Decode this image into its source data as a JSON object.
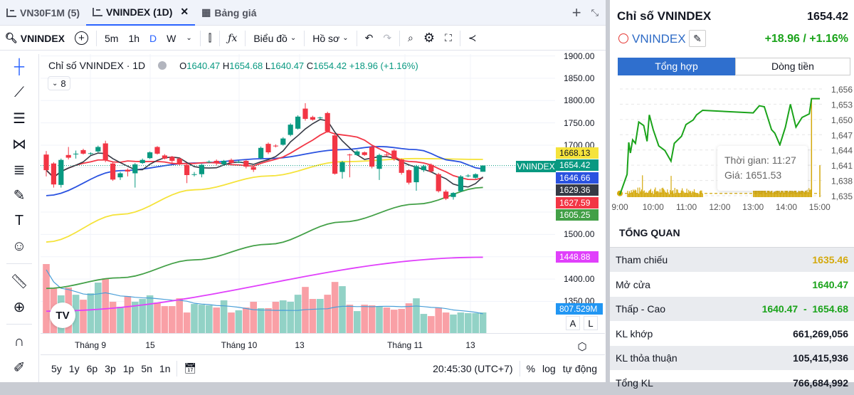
{
  "tabs": [
    {
      "label": "VN30F1M (5)",
      "icon": "chart-icon"
    },
    {
      "label": "VNINDEX (1D)",
      "icon": "chart-icon",
      "active": true
    },
    {
      "label": "Bảng giá",
      "icon": "table-icon"
    }
  ],
  "toolbar": {
    "symbol": "VNINDEX",
    "intervals": [
      "5m",
      "1h",
      "D",
      "W"
    ],
    "active_interval": "D",
    "chart_type_label": "Biểu đồ",
    "profile_label": "Hồ sơ"
  },
  "legend": {
    "title": "Chỉ số VNINDEX · 1D",
    "o_label": "O",
    "o": "1640.47",
    "h_label": "H",
    "h": "1654.68",
    "l_label": "L",
    "l": "1640.47",
    "c_label": "C",
    "c": "1654.42",
    "change": "+18.96 (+1.16%)",
    "indicator_count": "8"
  },
  "price_ticks": [
    "1900.00",
    "1850.00",
    "1800.00",
    "1750.00",
    "1700.00",
    "1500.00",
    "1400.00",
    "1350.00"
  ],
  "price_labels": [
    {
      "value": "1668.13",
      "color": "#f5e33b",
      "text_color": "#131722"
    },
    {
      "value": "1654.42",
      "color": "#089981",
      "tag": "VNINDEX"
    },
    {
      "value": "1646.66",
      "color": "#2a52e0"
    },
    {
      "value": "1629.36",
      "color": "#363a45"
    },
    {
      "value": "1627.59",
      "color": "#f23645"
    },
    {
      "value": "1605.25",
      "color": "#43a047"
    }
  ],
  "ma200_label": {
    "value": "1448.88",
    "color": "#e040fb"
  },
  "volume_label": "807.529M",
  "scale_buttons": [
    "A",
    "L"
  ],
  "x_ticks": [
    "Tháng 9",
    "15",
    "Tháng 10",
    "13",
    "Tháng 11",
    "13"
  ],
  "ranges": [
    "5y",
    "1y",
    "6p",
    "3p",
    "1p",
    "5n",
    "1n"
  ],
  "clock": "20:45:30 (UTC+7)",
  "axis_options": [
    "%",
    "log",
    "tự động"
  ],
  "chart_data": {
    "type": "candlestick",
    "colors": {
      "up": "#089981",
      "down": "#f23645",
      "vol_up": "#92d2c6",
      "vol_down": "#f9a0a6"
    },
    "ylim": [
      1300,
      1900
    ],
    "open": [
      1679,
      1659,
      1611,
      1678,
      1680,
      1689,
      1681,
      1686,
      1704,
      1659,
      1628,
      1645,
      1637,
      1660,
      1671,
      1696,
      1677,
      1674,
      1670,
      1656,
      1634,
      1635,
      1663,
      1665,
      1657,
      1667,
      1663,
      1665,
      1651,
      1671,
      1703,
      1699,
      1701,
      1723,
      1737,
      1782,
      1763,
      1761,
      1772,
      1722,
      1640,
      1679,
      1678,
      1684,
      1696,
      1647,
      1679,
      1688,
      1668,
      1644,
      1617,
      1644,
      1656,
      1635,
      1596,
      1584,
      1597,
      1632,
      1627,
      1640.47
    ],
    "close": [
      1644,
      1612,
      1667,
      1672,
      1681,
      1681,
      1682,
      1696,
      1667,
      1623,
      1637,
      1641,
      1657,
      1667,
      1684,
      1681,
      1670,
      1665,
      1657,
      1633,
      1635,
      1656,
      1663,
      1660,
      1665,
      1660,
      1663,
      1652,
      1645,
      1694,
      1684,
      1698,
      1715,
      1746,
      1764,
      1759,
      1757,
      1762,
      1731,
      1636,
      1662,
      1678,
      1686,
      1678,
      1652,
      1678,
      1678,
      1669,
      1638,
      1616,
      1653,
      1653,
      1641,
      1597,
      1580,
      1593,
      1630,
      1632,
      1635,
      1654.42
    ],
    "high": [
      1687,
      1662,
      1670,
      1696,
      1688,
      1692,
      1684,
      1699,
      1710,
      1664,
      1640,
      1648,
      1660,
      1670,
      1686,
      1698,
      1680,
      1676,
      1672,
      1658,
      1640,
      1658,
      1666,
      1668,
      1667,
      1670,
      1666,
      1668,
      1654,
      1697,
      1706,
      1702,
      1718,
      1749,
      1767,
      1794,
      1766,
      1764,
      1775,
      1724,
      1665,
      1681,
      1689,
      1686,
      1699,
      1681,
      1684,
      1691,
      1670,
      1646,
      1656,
      1656,
      1659,
      1638,
      1600,
      1595,
      1633,
      1635,
      1637,
      1654.68
    ],
    "low": [
      1630,
      1605,
      1605,
      1668,
      1670,
      1679,
      1678,
      1684,
      1662,
      1620,
      1622,
      1630,
      1605,
      1658,
      1669,
      1679,
      1668,
      1660,
      1655,
      1615,
      1630,
      1628,
      1660,
      1655,
      1655,
      1657,
      1660,
      1648,
      1640,
      1668,
      1680,
      1695,
      1699,
      1720,
      1735,
      1755,
      1755,
      1758,
      1728,
      1634,
      1625,
      1628,
      1676,
      1676,
      1648,
      1622,
      1675,
      1665,
      1634,
      1612,
      1598,
      1640,
      1638,
      1594,
      1577,
      1578,
      1595,
      1628,
      1625,
      1640.47
    ],
    "volume_m": [
      2700,
      1750,
      1475,
      1780,
      1500,
      1305,
      1555,
      1975,
      2140,
      1225,
      1030,
      1445,
      1225,
      1335,
      1475,
      1195,
      1055,
      1055,
      1360,
      805,
      1140,
      1110,
      1085,
      1000,
      1280,
      805,
      890,
      1000,
      1225,
      975,
      975,
      1225,
      1280,
      1225,
      1500,
      1805,
      1335,
      1335,
      1500,
      2000,
      1835,
      1110,
      860,
      1110,
      1085,
      1055,
      1000,
      915,
      945,
      1165,
      1360,
      750,
      665,
      1000,
      805,
      725,
      805,
      780,
      780,
      807.529
    ],
    "ma_series": [
      {
        "color": "#f5e33b",
        "at": [
          0,
          10,
          20,
          30,
          40,
          50,
          59
        ],
        "values": [
          1483,
          1545,
          1600,
          1631,
          1663,
          1670,
          1668.13
        ]
      },
      {
        "color": "#2a52e0",
        "at": [
          0,
          10,
          20,
          30,
          40,
          45,
          50,
          55,
          59
        ],
        "values": [
          1587,
          1643,
          1660,
          1670,
          1690,
          1697,
          1690,
          1665,
          1646.66
        ]
      },
      {
        "color": "#43a047",
        "at": [
          0,
          10,
          20,
          30,
          40,
          50,
          59
        ],
        "values": [
          1379,
          1403,
          1443,
          1478,
          1528,
          1568,
          1605.25
        ]
      },
      {
        "color": "#e040fb",
        "at": [
          0,
          59
        ],
        "values": [
          1328,
          1448.88
        ]
      }
    ],
    "short_ma_colors": {
      "ma5": "#363a45",
      "ma10": "#f23645"
    }
  },
  "quote": {
    "title": "Chỉ số VNINDEX",
    "price": "1654.42",
    "symbol": "VNINDEX",
    "change": "+18.96 / +1.16%"
  },
  "panel_tabs": [
    "Tổng hợp",
    "Dòng tiền"
  ],
  "intraday": {
    "y_ticks": [
      "1,656",
      "1,653",
      "1,650",
      "1,647",
      "1,644",
      "1,641",
      "1,638",
      "1,635"
    ],
    "x_ticks": [
      "9:00",
      "10:00",
      "11:00",
      "12:00",
      "13:00",
      "14:00",
      "15:00"
    ],
    "reference": 1635.46,
    "line_color": "#1aa31a",
    "volume_color": "#d4a90c",
    "points": [
      [
        "9:00",
        1635.2
      ],
      [
        "9:13",
        1639.2
      ],
      [
        "9:16",
        1645.5
      ],
      [
        "9:19",
        1643.4
      ],
      [
        "9:23",
        1646
      ],
      [
        "9:28",
        1645.3
      ],
      [
        "9:34",
        1649.5
      ],
      [
        "9:43",
        1648.8
      ],
      [
        "9:49",
        1645.7
      ],
      [
        "9:53",
        1650.9
      ],
      [
        "10:00",
        1648
      ],
      [
        "10:10",
        1644.8
      ],
      [
        "10:21",
        1643.9
      ],
      [
        "10:32",
        1641.8
      ],
      [
        "10:38",
        1645.3
      ],
      [
        "10:51",
        1646.7
      ],
      [
        "10:59",
        1649
      ],
      [
        "11:12",
        1649.9
      ],
      [
        "11:18",
        1650.9
      ],
      [
        "11:29",
        1651.8
      ],
      [
        "13:00",
        1651.3
      ],
      [
        "13:11",
        1652.7
      ],
      [
        "13:20",
        1652.5
      ],
      [
        "13:33",
        1648
      ],
      [
        "13:39",
        1647.3
      ],
      [
        "13:48",
        1645
      ],
      [
        "13:58",
        1648.5
      ],
      [
        "14:07",
        1653
      ],
      [
        "14:17",
        1648.5
      ],
      [
        "14:28",
        1650.4
      ],
      [
        "14:41",
        1651.1
      ],
      [
        "14:45",
        1654.1
      ],
      [
        "15:00",
        1654.1
      ]
    ],
    "tooltip": {
      "time_label": "Thời gian: 11:27",
      "price_label": "Giá: 1651.53"
    }
  },
  "overview": {
    "title": "TỔNG QUAN",
    "rows": [
      {
        "label": "Tham chiếu",
        "value": "1635.46",
        "color": "#d4a90c"
      },
      {
        "label": "Mở cửa",
        "value": "1640.47",
        "color": "#1aa31a"
      },
      {
        "label": "Thấp - Cao",
        "value": "1640.47  -  1654.68",
        "color": "#1aa31a"
      },
      {
        "label": "KL khớp",
        "value": "661,269,056",
        "color": "#131722"
      },
      {
        "label": "KL thỏa thuận",
        "value": "105,415,936",
        "color": "#131722"
      },
      {
        "label": "Tổng KL",
        "value": "766,684,992",
        "color": "#131722"
      }
    ]
  }
}
